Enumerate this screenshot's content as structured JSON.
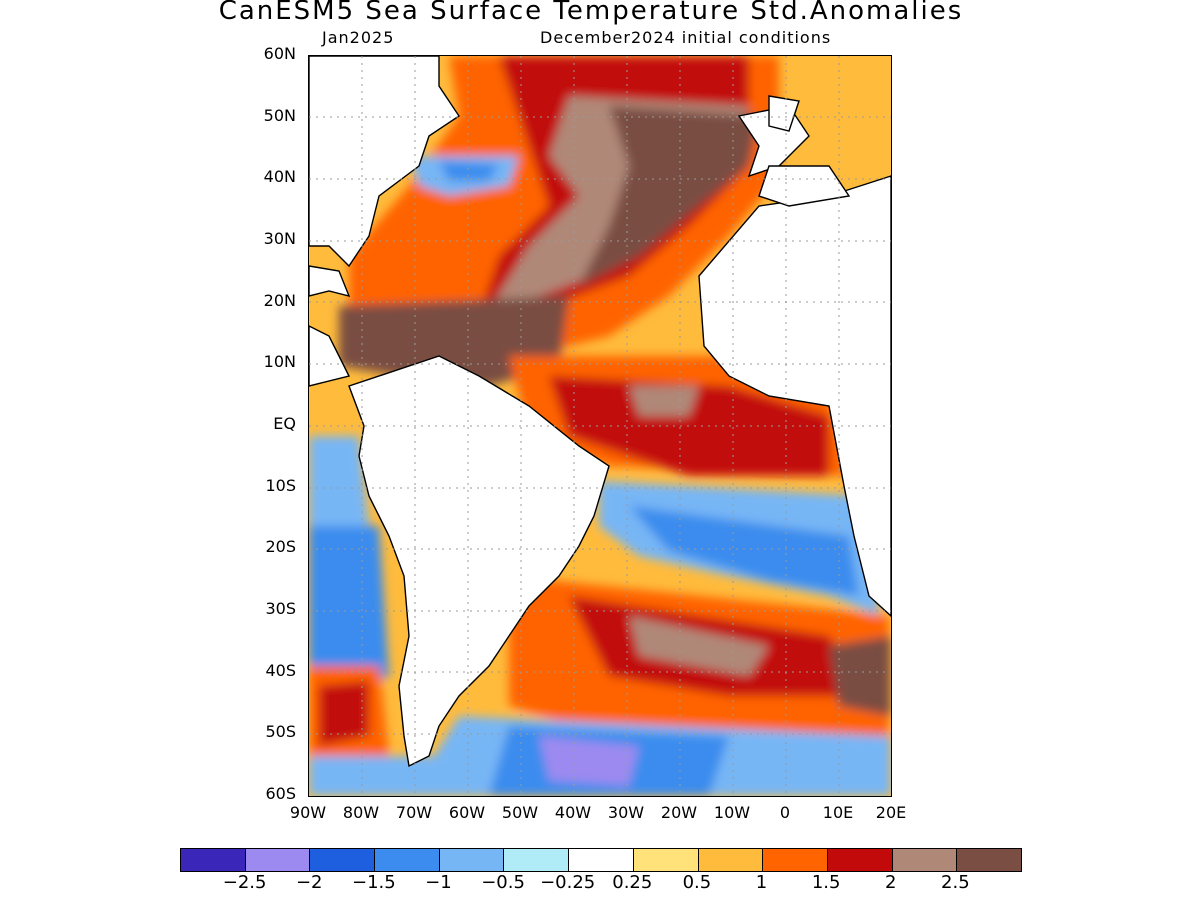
{
  "title": "CanESM5 Sea Surface Temperature Std.Anomalies",
  "subtitle_left": "Jan2025",
  "subtitle_right": "December2024 initial conditions",
  "lat_labels": [
    "60N",
    "50N",
    "40N",
    "30N",
    "20N",
    "10N",
    "EQ",
    "10S",
    "20S",
    "30S",
    "40S",
    "50S",
    "60S"
  ],
  "lon_labels": [
    "90W",
    "80W",
    "70W",
    "60W",
    "50W",
    "40W",
    "30W",
    "20W",
    "10W",
    "0",
    "10E",
    "20E"
  ],
  "colorbar": {
    "colors": [
      "#3a26b8",
      "#9c8af0",
      "#1e5fe0",
      "#3b8cee",
      "#77b6f5",
      "#b0ecf7",
      "#ffffff",
      "#ffe27a",
      "#ffbb3c",
      "#ff6400",
      "#c20a0a",
      "#b08878",
      "#7a4e42"
    ],
    "labels": [
      "−2.5",
      "−2",
      "−1.5",
      "−1",
      "−0.5",
      "−0.25",
      "0.25",
      "0.5",
      "1",
      "1.5",
      "2",
      "2.5"
    ]
  }
}
